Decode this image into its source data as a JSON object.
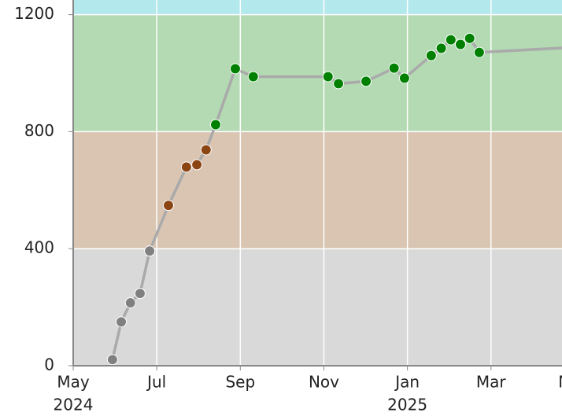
{
  "chart_data": {
    "type": "line",
    "x": [
      0.94,
      1.15,
      1.37,
      1.6,
      1.83,
      2.28,
      2.71,
      2.96,
      3.18,
      3.41,
      3.88,
      4.31,
      6.1,
      6.35,
      7.01,
      7.68,
      7.93,
      8.57,
      8.81,
      9.04,
      9.27,
      9.49,
      9.72,
      12.2
    ],
    "series": [
      {
        "color": "#aaaaaa",
        "values": [
          21,
          150,
          215,
          247,
          392,
          548,
          679,
          687,
          738,
          824,
          1015,
          988,
          988,
          964,
          972,
          1017,
          983,
          1060,
          1085,
          1114,
          1098,
          1119,
          1071,
          1090
        ]
      }
    ],
    "bands": [
      {
        "from": 0,
        "to": 400,
        "color": "#d9d9d9",
        "point_color": "#808080"
      },
      {
        "from": 400,
        "to": 800,
        "color": "#d9c5b2",
        "point_color": "#8b4513"
      },
      {
        "from": 800,
        "to": 1200,
        "color": "#b3dab3",
        "point_color": "#008000"
      },
      {
        "from": 1200,
        "to": 1250,
        "color": "#b3e8ec",
        "point_color": "#00c0c0"
      }
    ],
    "xlim": [
      0,
      11.7
    ],
    "ylim": [
      0,
      1250
    ],
    "yticks": [
      0,
      400,
      800,
      1200
    ],
    "xticks": [
      {
        "value": 0,
        "label": "May"
      },
      {
        "value": 2,
        "label": "Jul"
      },
      {
        "value": 4,
        "label": "Sep"
      },
      {
        "value": 6,
        "label": "Nov"
      },
      {
        "value": 8,
        "label": "Jan"
      },
      {
        "value": 10,
        "label": "Mar"
      },
      {
        "value": 12,
        "label": "May"
      }
    ],
    "xtick_years": [
      {
        "value": 0,
        "label": "2024"
      },
      {
        "value": 8,
        "label": "2025"
      }
    ],
    "grid": true
  }
}
